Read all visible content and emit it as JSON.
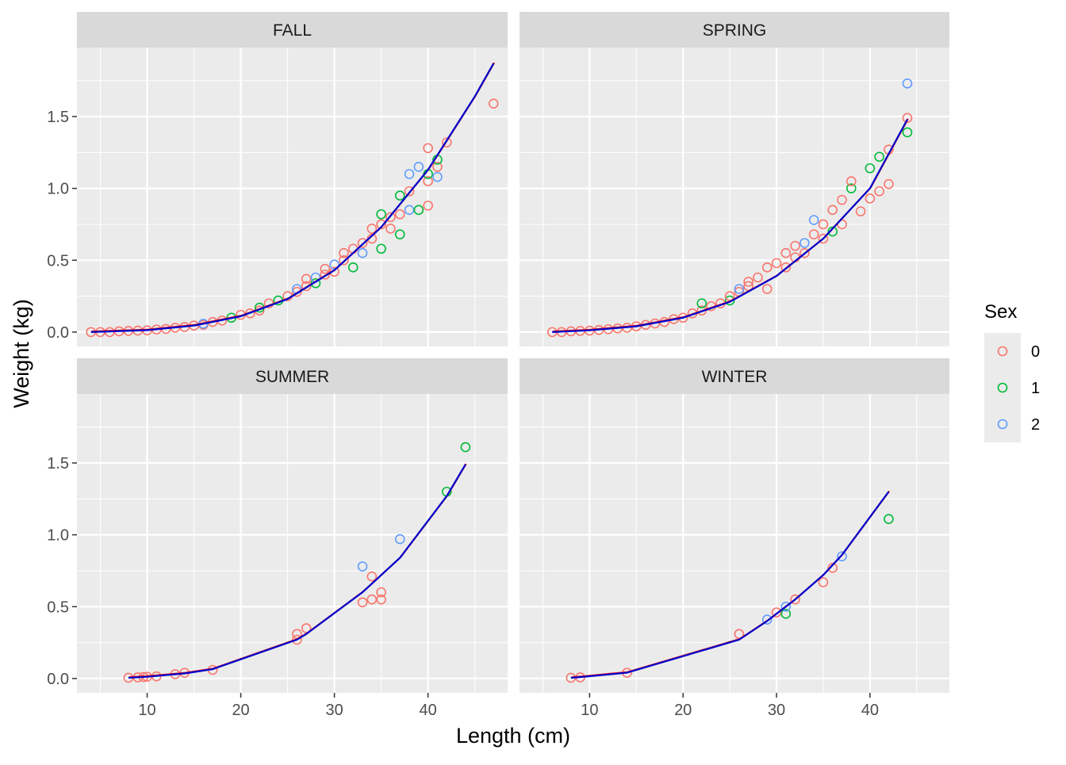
{
  "chart_data": {
    "type": "scatter",
    "xlabel": "Length (cm)",
    "ylabel": "Weight (kg)",
    "x_ticks": [
      10,
      20,
      30,
      40
    ],
    "y_ticks": [
      0.0,
      0.5,
      1.0,
      1.5
    ],
    "y_tick_labels": [
      "0.0",
      "0.5",
      "1.0",
      "1.5"
    ],
    "xlim": [
      2.5,
      48.5
    ],
    "ylim": [
      -0.1,
      1.98
    ],
    "grid": true,
    "legend": {
      "title": "Sex",
      "placement": "right",
      "entries": [
        {
          "label": "0",
          "color": "#F8766D"
        },
        {
          "label": "1",
          "color": "#00BA38"
        },
        {
          "label": "2",
          "color": "#619CFF"
        }
      ]
    },
    "fit_line_colors": [
      "#E41A1C",
      "#0000CD"
    ],
    "panels": [
      {
        "title": "FALL",
        "points": [
          [
            4,
            0.0,
            0
          ],
          [
            5,
            0.0,
            0
          ],
          [
            6,
            0.0,
            0
          ],
          [
            7,
            0.005,
            0
          ],
          [
            8,
            0.008,
            0
          ],
          [
            9,
            0.01,
            0
          ],
          [
            10,
            0.012,
            0
          ],
          [
            11,
            0.018,
            0
          ],
          [
            12,
            0.022,
            0
          ],
          [
            13,
            0.03,
            0
          ],
          [
            14,
            0.035,
            0
          ],
          [
            15,
            0.045,
            0
          ],
          [
            16,
            0.05,
            0
          ],
          [
            16,
            0.058,
            2
          ],
          [
            17,
            0.07,
            0
          ],
          [
            18,
            0.08,
            0
          ],
          [
            19,
            0.1,
            1
          ],
          [
            20,
            0.12,
            0
          ],
          [
            21,
            0.13,
            0
          ],
          [
            22,
            0.15,
            0
          ],
          [
            22,
            0.17,
            1
          ],
          [
            23,
            0.2,
            0
          ],
          [
            24,
            0.22,
            1
          ],
          [
            25,
            0.25,
            0
          ],
          [
            26,
            0.28,
            0
          ],
          [
            26,
            0.3,
            2
          ],
          [
            27,
            0.32,
            0
          ],
          [
            27,
            0.37,
            0
          ],
          [
            28,
            0.34,
            1
          ],
          [
            28,
            0.38,
            2
          ],
          [
            29,
            0.4,
            0
          ],
          [
            29,
            0.44,
            0
          ],
          [
            30,
            0.42,
            0
          ],
          [
            30,
            0.47,
            2
          ],
          [
            31,
            0.5,
            0
          ],
          [
            31,
            0.55,
            0
          ],
          [
            32,
            0.45,
            1
          ],
          [
            32,
            0.58,
            0
          ],
          [
            33,
            0.55,
            2
          ],
          [
            33,
            0.62,
            0
          ],
          [
            34,
            0.65,
            0
          ],
          [
            34,
            0.72,
            0
          ],
          [
            35,
            0.58,
            1
          ],
          [
            35,
            0.75,
            0
          ],
          [
            35,
            0.82,
            1
          ],
          [
            36,
            0.72,
            0
          ],
          [
            36,
            0.8,
            0
          ],
          [
            37,
            0.68,
            1
          ],
          [
            37,
            0.82,
            0
          ],
          [
            37,
            0.95,
            1
          ],
          [
            38,
            0.85,
            2
          ],
          [
            38,
            0.98,
            0
          ],
          [
            38,
            1.1,
            2
          ],
          [
            39,
            0.85,
            1
          ],
          [
            39,
            1.15,
            2
          ],
          [
            40,
            0.88,
            0
          ],
          [
            40,
            1.05,
            0
          ],
          [
            40,
            1.1,
            1
          ],
          [
            40,
            1.28,
            0
          ],
          [
            41,
            1.08,
            2
          ],
          [
            41,
            1.15,
            0
          ],
          [
            41,
            1.2,
            1
          ],
          [
            42,
            1.32,
            0
          ],
          [
            47,
            1.59,
            0
          ]
        ],
        "fit": [
          [
            4,
            0.0
          ],
          [
            10,
            0.013
          ],
          [
            15,
            0.045
          ],
          [
            20,
            0.11
          ],
          [
            25,
            0.23
          ],
          [
            30,
            0.43
          ],
          [
            35,
            0.73
          ],
          [
            40,
            1.13
          ],
          [
            45,
            1.64
          ],
          [
            47,
            1.87
          ]
        ]
      },
      {
        "title": "SPRING",
        "points": [
          [
            6,
            0.0,
            0
          ],
          [
            7,
            0.0,
            0
          ],
          [
            8,
            0.005,
            0
          ],
          [
            9,
            0.008,
            0
          ],
          [
            10,
            0.01,
            0
          ],
          [
            11,
            0.015,
            0
          ],
          [
            12,
            0.02,
            0
          ],
          [
            13,
            0.025,
            0
          ],
          [
            14,
            0.03,
            0
          ],
          [
            15,
            0.04,
            0
          ],
          [
            16,
            0.05,
            0
          ],
          [
            17,
            0.06,
            0
          ],
          [
            18,
            0.07,
            0
          ],
          [
            19,
            0.09,
            0
          ],
          [
            20,
            0.1,
            0
          ],
          [
            21,
            0.13,
            0
          ],
          [
            22,
            0.15,
            0
          ],
          [
            22,
            0.2,
            1
          ],
          [
            23,
            0.18,
            0
          ],
          [
            24,
            0.2,
            0
          ],
          [
            25,
            0.22,
            1
          ],
          [
            25,
            0.25,
            0
          ],
          [
            26,
            0.28,
            0
          ],
          [
            26,
            0.3,
            2
          ],
          [
            27,
            0.32,
            0
          ],
          [
            27,
            0.35,
            0
          ],
          [
            28,
            0.38,
            0
          ],
          [
            29,
            0.3,
            0
          ],
          [
            29,
            0.45,
            0
          ],
          [
            30,
            0.48,
            0
          ],
          [
            31,
            0.45,
            0
          ],
          [
            31,
            0.55,
            0
          ],
          [
            32,
            0.52,
            0
          ],
          [
            32,
            0.6,
            0
          ],
          [
            33,
            0.55,
            0
          ],
          [
            33,
            0.62,
            2
          ],
          [
            34,
            0.68,
            0
          ],
          [
            34,
            0.78,
            2
          ],
          [
            35,
            0.65,
            0
          ],
          [
            35,
            0.75,
            0
          ],
          [
            36,
            0.7,
            1
          ],
          [
            36,
            0.85,
            0
          ],
          [
            37,
            0.75,
            0
          ],
          [
            37,
            0.92,
            0
          ],
          [
            38,
            1.0,
            1
          ],
          [
            38,
            1.05,
            0
          ],
          [
            39,
            0.84,
            0
          ],
          [
            40,
            0.93,
            0
          ],
          [
            40,
            1.14,
            1
          ],
          [
            41,
            0.98,
            0
          ],
          [
            41,
            1.22,
            1
          ],
          [
            42,
            1.03,
            0
          ],
          [
            42,
            1.27,
            0
          ],
          [
            44,
            1.39,
            1
          ],
          [
            44,
            1.49,
            0
          ],
          [
            44,
            1.73,
            2
          ]
        ],
        "fit": [
          [
            6,
            0.0
          ],
          [
            10,
            0.012
          ],
          [
            15,
            0.04
          ],
          [
            20,
            0.1
          ],
          [
            25,
            0.21
          ],
          [
            30,
            0.39
          ],
          [
            35,
            0.65
          ],
          [
            40,
            1.0
          ],
          [
            44,
            1.48
          ]
        ]
      },
      {
        "title": "SUMMER",
        "points": [
          [
            8,
            0.005,
            0
          ],
          [
            9,
            0.008,
            0
          ],
          [
            9.6,
            0.01,
            0
          ],
          [
            10,
            0.012,
            0
          ],
          [
            11,
            0.015,
            0
          ],
          [
            13,
            0.03,
            0
          ],
          [
            14,
            0.04,
            0
          ],
          [
            17,
            0.06,
            0
          ],
          [
            26,
            0.27,
            0
          ],
          [
            26,
            0.31,
            0
          ],
          [
            27,
            0.35,
            0
          ],
          [
            33,
            0.53,
            0
          ],
          [
            33,
            0.78,
            2
          ],
          [
            34,
            0.55,
            0
          ],
          [
            34,
            0.71,
            0
          ],
          [
            35,
            0.55,
            0
          ],
          [
            35,
            0.6,
            0
          ],
          [
            37,
            0.97,
            2
          ],
          [
            42,
            1.3,
            1
          ],
          [
            44,
            1.61,
            1
          ]
        ],
        "fit": [
          [
            8,
            0.005
          ],
          [
            10,
            0.012
          ],
          [
            14,
            0.035
          ],
          [
            17,
            0.065
          ],
          [
            26,
            0.27
          ],
          [
            27,
            0.31
          ],
          [
            33,
            0.6
          ],
          [
            34,
            0.66
          ],
          [
            37,
            0.84
          ],
          [
            42,
            1.27
          ],
          [
            44,
            1.49
          ]
        ]
      },
      {
        "title": "WINTER",
        "points": [
          [
            8,
            0.005,
            0
          ],
          [
            9,
            0.008,
            0
          ],
          [
            14,
            0.04,
            0
          ],
          [
            26,
            0.31,
            0
          ],
          [
            29,
            0.41,
            2
          ],
          [
            30,
            0.46,
            0
          ],
          [
            31,
            0.45,
            1
          ],
          [
            31,
            0.5,
            2
          ],
          [
            32,
            0.55,
            0
          ],
          [
            35,
            0.67,
            0
          ],
          [
            36,
            0.77,
            0
          ],
          [
            37,
            0.85,
            2
          ],
          [
            42,
            1.11,
            1
          ]
        ],
        "fit": [
          [
            8,
            0.005
          ],
          [
            9,
            0.01
          ],
          [
            14,
            0.04
          ],
          [
            26,
            0.27
          ],
          [
            29,
            0.4
          ],
          [
            30,
            0.45
          ],
          [
            32,
            0.55
          ],
          [
            35,
            0.72
          ],
          [
            37,
            0.86
          ],
          [
            42,
            1.3
          ]
        ]
      }
    ]
  }
}
